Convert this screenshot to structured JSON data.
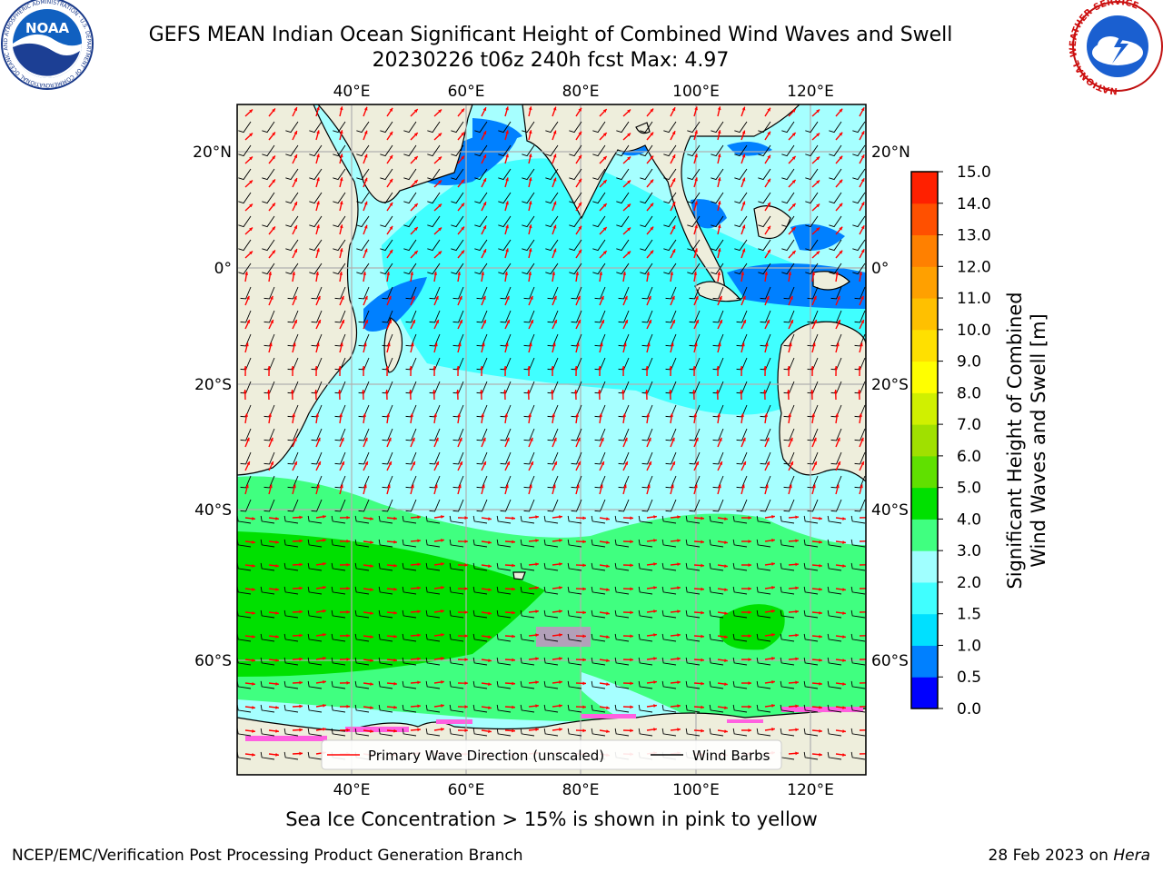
{
  "header": {
    "title_line1": "GEFS MEAN Indian Ocean Significant Height of Combined Wind Waves and Swell",
    "title_line2": "20230226 t06z 240h fcst   Max: 4.97"
  },
  "logos": {
    "left": "noaa-logo",
    "left_text": "NOAA",
    "left_ring_text": "NATIONAL OCEANIC AND ATMOSPHERIC ADMINISTRATION · U.S. DEPARTMENT OF COMMERCE",
    "right": "nws-logo",
    "right_ring_text": "NATIONAL WEATHER SERVICE"
  },
  "map": {
    "lon_labels": [
      "40°E",
      "60°E",
      "80°E",
      "100°E",
      "120°E"
    ],
    "lat_labels": [
      "20°N",
      "0°",
      "20°S",
      "40°S",
      "60°S"
    ],
    "legend": {
      "wave_dir_label": "Primary Wave Direction (unscaled)",
      "wind_barb_label": "Wind Barbs",
      "wave_dir_color": "#ff0000",
      "wind_barb_color": "#000000"
    },
    "land_color": "#eeeedc"
  },
  "colorbar": {
    "label_line1": "Significant Height of Combined",
    "label_line2": "Wind Waves and Swell [m]",
    "ticks": [
      "0.0",
      "0.5",
      "1.0",
      "1.5",
      "2.0",
      "3.0",
      "4.0",
      "5.0",
      "6.0",
      "7.0",
      "8.0",
      "9.0",
      "10.0",
      "11.0",
      "12.0",
      "13.0",
      "14.0",
      "15.0"
    ],
    "colors": [
      "#0000ff",
      "#0080ff",
      "#00e0ff",
      "#40ffff",
      "#a0ffff",
      "#40ff80",
      "#00e000",
      "#60e000",
      "#a0e000",
      "#d0f000",
      "#ffff00",
      "#ffe000",
      "#ffc000",
      "#ffa000",
      "#ff8000",
      "#ff5000",
      "#ff2000"
    ]
  },
  "caption": "Sea Ice Concentration > 15% is shown in pink to yellow",
  "footer": {
    "left": "NCEP/EMC/Verification Post Processing Product Generation Branch",
    "right_prefix": "28 Feb 2023 on ",
    "right_system": "Hera"
  }
}
